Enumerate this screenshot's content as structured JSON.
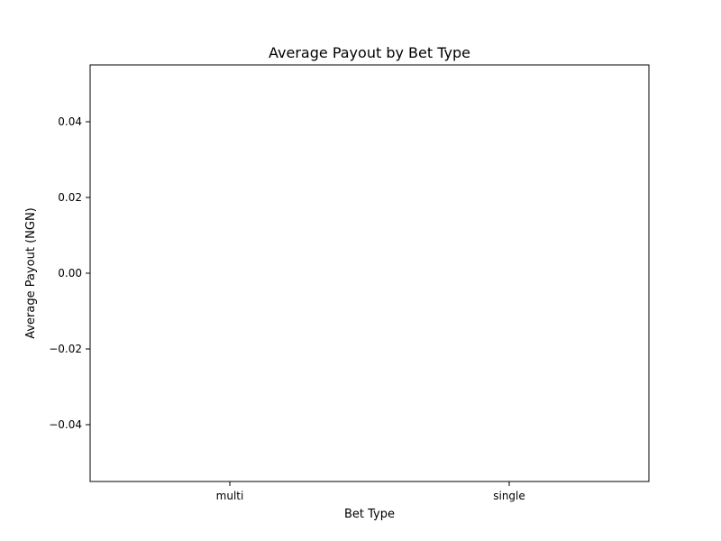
{
  "chart_data": {
    "type": "bar",
    "title": "Average Payout by Bet Type",
    "xlabel": "Bet Type",
    "ylabel": "Average Payout (NGN)",
    "categories": [
      "multi",
      "single"
    ],
    "values": [
      0,
      0
    ],
    "ylim": [
      -0.055,
      0.055
    ],
    "yticks": [
      -0.04,
      -0.02,
      0.0,
      0.02,
      0.04
    ],
    "ytick_labels": [
      "−0.04",
      "−0.02",
      "0.00",
      "0.02",
      "0.04"
    ],
    "grid": false,
    "legend": "none"
  }
}
